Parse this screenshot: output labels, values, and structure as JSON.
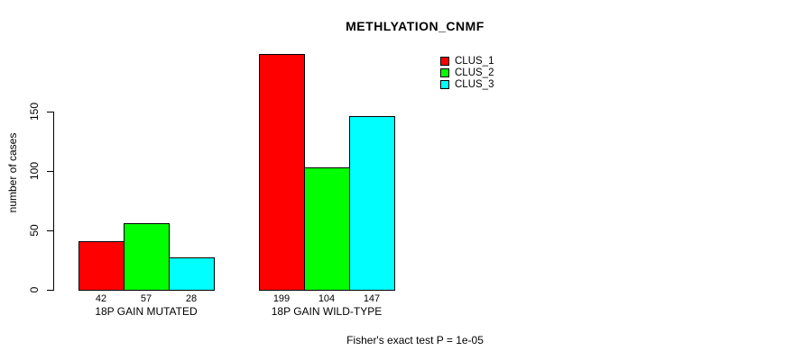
{
  "title": "METHLYATION_CNMF",
  "footer": "Fisher's exact test P = 1e-05",
  "chart_data": {
    "type": "bar",
    "title": "METHLYATION_CNMF",
    "xlabel": "",
    "ylabel": "number of cases",
    "categories": [
      "18P GAIN MUTATED",
      "18P GAIN WILD-TYPE"
    ],
    "series": [
      {
        "name": "CLUS_1",
        "color": "#ff0000",
        "values": [
          42,
          199
        ]
      },
      {
        "name": "CLUS_2",
        "color": "#00ff00",
        "values": [
          57,
          104
        ]
      },
      {
        "name": "CLUS_3",
        "color": "#00ffff",
        "values": [
          28,
          147
        ]
      }
    ],
    "bar_value_labels": [
      [
        42,
        57,
        28
      ],
      [
        199,
        104,
        147
      ]
    ],
    "ylim": [
      0,
      150
    ],
    "yticks": [
      0,
      50,
      100,
      150
    ],
    "grid": false,
    "legend_position": "top-right",
    "legend_entries": [
      "CLUS_1",
      "CLUS_2",
      "CLUS_3"
    ],
    "annotation": "Fisher's exact test P = 1e-05",
    "bar_border_color": "#000000"
  }
}
